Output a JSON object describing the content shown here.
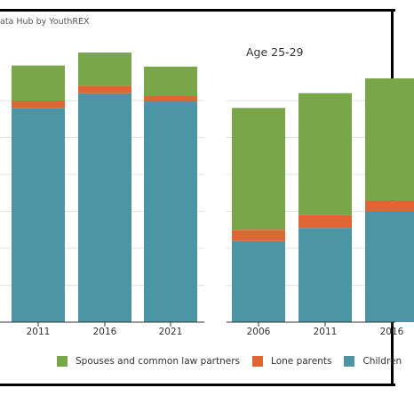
{
  "source_text": "ata Hub by YouthREX",
  "colors": {
    "spouses": "#7aa64a",
    "lone_parents": "#e06535",
    "children": "#4b95a5",
    "grid": "#e3e3e3",
    "axis": "#333333"
  },
  "legend": {
    "spouses": "Spouses and common law partners",
    "lone_parents": "Lone parents",
    "children": "Children"
  },
  "chart_data": [
    {
      "type": "bar",
      "stacked": true,
      "title": "",
      "categories": [
        "2011",
        "2016",
        "2021"
      ],
      "series": [
        {
          "name": "Children",
          "values": [
            58,
            62,
            60
          ]
        },
        {
          "name": "Lone parents",
          "values": [
            2,
            2,
            1.2
          ]
        },
        {
          "name": "Spouses and common law partners",
          "values": [
            9.5,
            9,
            8
          ]
        }
      ],
      "ylim": [
        0,
        70
      ],
      "grid": true,
      "legend": "bottom"
    },
    {
      "type": "bar",
      "stacked": true,
      "title": "Age 25-29",
      "categories": [
        "2006",
        "2011",
        "2016"
      ],
      "series": [
        {
          "name": "Children",
          "values": [
            22,
            25.5,
            30
          ]
        },
        {
          "name": "Lone parents",
          "values": [
            3,
            3.5,
            3
          ]
        },
        {
          "name": "Spouses and common law partners",
          "values": [
            33,
            33,
            33
          ]
        }
      ],
      "ylim": [
        0,
        70
      ],
      "grid": true,
      "legend": "bottom"
    }
  ]
}
